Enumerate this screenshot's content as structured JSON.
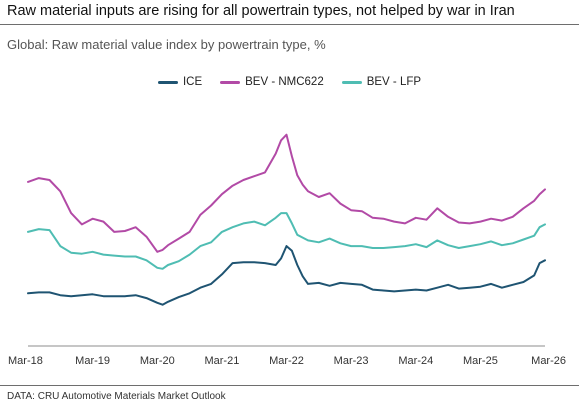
{
  "header": {
    "title": "Raw material inputs are rising for all powertrain types, not helped by war in Iran",
    "subtitle": "Global: Raw material value index by powertrain type, %"
  },
  "footer": {
    "source": "DATA: CRU Automotive Materials Market Outlook"
  },
  "colors": {
    "ICE": "#1f5472",
    "BEV - NMC622": "#b24aa6",
    "BEV - LFP": "#4fbdb3",
    "axis": "#8c8c8c",
    "rule": "#6e6e6e"
  },
  "chart_data": {
    "type": "line",
    "title": "Global: Raw material value index by powertrain type, %",
    "xlabel": "",
    "ylabel": "",
    "x_ticks": [
      "Mar-18",
      "Mar-19",
      "Mar-20",
      "Mar-21",
      "Mar-22",
      "Mar-23",
      "Mar-24",
      "Mar-25",
      "Mar-26"
    ],
    "x_range": [
      "2018-03",
      "2026-03"
    ],
    "ylim": [
      0,
      270
    ],
    "y_axis_visible": false,
    "grid": false,
    "legend_position": "top-center",
    "series": [
      {
        "name": "ICE",
        "x": [
          "2018-03",
          "2018-05",
          "2018-07",
          "2018-09",
          "2018-11",
          "2019-01",
          "2019-03",
          "2019-05",
          "2019-07",
          "2019-09",
          "2019-11",
          "2020-01",
          "2020-03",
          "2020-04",
          "2020-05",
          "2020-07",
          "2020-09",
          "2020-11",
          "2021-01",
          "2021-03",
          "2021-05",
          "2021-07",
          "2021-09",
          "2021-11",
          "2022-01",
          "2022-02",
          "2022-03",
          "2022-04",
          "2022-05",
          "2022-06",
          "2022-07",
          "2022-09",
          "2022-11",
          "2023-01",
          "2023-03",
          "2023-05",
          "2023-07",
          "2023-09",
          "2023-11",
          "2024-01",
          "2024-03",
          "2024-05",
          "2024-07",
          "2024-09",
          "2024-11",
          "2025-01",
          "2025-03",
          "2025-05",
          "2025-07",
          "2025-09",
          "2025-11",
          "2026-01",
          "2026-02",
          "2026-03"
        ],
        "y": [
          60,
          61,
          61,
          58,
          57,
          58,
          59,
          57,
          57,
          57,
          58,
          55,
          50,
          48,
          51,
          56,
          60,
          66,
          70,
          80,
          92,
          93,
          93,
          92,
          90,
          97,
          110,
          105,
          90,
          78,
          70,
          71,
          68,
          71,
          70,
          69,
          64,
          63,
          62,
          63,
          64,
          63,
          66,
          69,
          65,
          66,
          67,
          70,
          66,
          69,
          72,
          79,
          92,
          95
        ]
      },
      {
        "name": "BEV - NMC622",
        "x": [
          "2018-03",
          "2018-05",
          "2018-07",
          "2018-09",
          "2018-11",
          "2019-01",
          "2019-03",
          "2019-05",
          "2019-07",
          "2019-09",
          "2019-11",
          "2020-01",
          "2020-03",
          "2020-04",
          "2020-05",
          "2020-07",
          "2020-09",
          "2020-11",
          "2021-01",
          "2021-03",
          "2021-05",
          "2021-07",
          "2021-09",
          "2021-11",
          "2022-01",
          "2022-02",
          "2022-03",
          "2022-04",
          "2022-05",
          "2022-06",
          "2022-07",
          "2022-09",
          "2022-11",
          "2023-01",
          "2023-03",
          "2023-05",
          "2023-07",
          "2023-09",
          "2023-11",
          "2024-01",
          "2024-03",
          "2024-05",
          "2024-07",
          "2024-09",
          "2024-11",
          "2025-01",
          "2025-03",
          "2025-05",
          "2025-07",
          "2025-09",
          "2025-11",
          "2026-01",
          "2026-02",
          "2026-03"
        ],
        "y": [
          178,
          182,
          180,
          168,
          145,
          133,
          139,
          136,
          125,
          126,
          130,
          120,
          104,
          106,
          111,
          118,
          125,
          143,
          153,
          165,
          174,
          180,
          184,
          188,
          208,
          222,
          228,
          205,
          185,
          175,
          168,
          162,
          166,
          155,
          148,
          147,
          140,
          139,
          136,
          134,
          140,
          138,
          150,
          141,
          135,
          134,
          136,
          139,
          137,
          141,
          150,
          158,
          165,
          170
        ]
      },
      {
        "name": "BEV - LFP",
        "x": [
          "2018-03",
          "2018-05",
          "2018-07",
          "2018-09",
          "2018-11",
          "2019-01",
          "2019-03",
          "2019-05",
          "2019-07",
          "2019-09",
          "2019-11",
          "2020-01",
          "2020-03",
          "2020-04",
          "2020-05",
          "2020-07",
          "2020-09",
          "2020-11",
          "2021-01",
          "2021-03",
          "2021-05",
          "2021-07",
          "2021-09",
          "2021-11",
          "2022-01",
          "2022-02",
          "2022-03",
          "2022-04",
          "2022-05",
          "2022-06",
          "2022-07",
          "2022-09",
          "2022-11",
          "2023-01",
          "2023-03",
          "2023-05",
          "2023-07",
          "2023-09",
          "2023-11",
          "2024-01",
          "2024-03",
          "2024-05",
          "2024-07",
          "2024-09",
          "2024-11",
          "2025-01",
          "2025-03",
          "2025-05",
          "2025-07",
          "2025-09",
          "2025-11",
          "2026-01",
          "2026-02",
          "2026-03"
        ],
        "y": [
          125,
          128,
          127,
          110,
          103,
          102,
          104,
          101,
          100,
          99,
          99,
          95,
          87,
          86,
          90,
          94,
          101,
          110,
          114,
          125,
          130,
          134,
          136,
          132,
          140,
          145,
          145,
          134,
          122,
          119,
          116,
          114,
          118,
          113,
          110,
          110,
          108,
          108,
          109,
          110,
          112,
          109,
          116,
          111,
          108,
          110,
          112,
          115,
          111,
          113,
          117,
          121,
          130,
          133
        ]
      }
    ]
  }
}
